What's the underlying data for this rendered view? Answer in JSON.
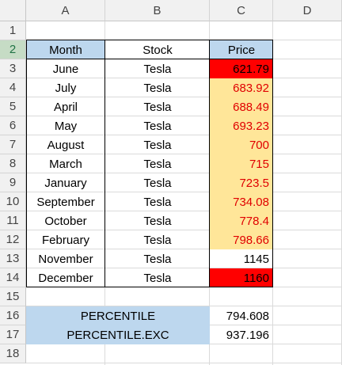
{
  "columns": [
    "A",
    "B",
    "C",
    "D"
  ],
  "rows": [
    "1",
    "2",
    "3",
    "4",
    "5",
    "6",
    "7",
    "8",
    "9",
    "10",
    "11",
    "12",
    "13",
    "14",
    "15",
    "16",
    "17",
    "18"
  ],
  "table": {
    "headers": {
      "month": "Month",
      "stock": "Stock",
      "price": "Price"
    },
    "data": [
      {
        "month": "June",
        "stock": "Tesla",
        "price": "621.79"
      },
      {
        "month": "July",
        "stock": "Tesla",
        "price": "683.92"
      },
      {
        "month": "April",
        "stock": "Tesla",
        "price": "688.49"
      },
      {
        "month": "May",
        "stock": "Tesla",
        "price": "693.23"
      },
      {
        "month": "August",
        "stock": "Tesla",
        "price": "700"
      },
      {
        "month": "March",
        "stock": "Tesla",
        "price": "715"
      },
      {
        "month": "January",
        "stock": "Tesla",
        "price": "723.5"
      },
      {
        "month": "September",
        "stock": "Tesla",
        "price": "734.08"
      },
      {
        "month": "October",
        "stock": "Tesla",
        "price": "778.4"
      },
      {
        "month": "February",
        "stock": "Tesla",
        "price": "798.66"
      },
      {
        "month": "November",
        "stock": "Tesla",
        "price": "1145"
      },
      {
        "month": "December",
        "stock": "Tesla",
        "price": "1160"
      }
    ]
  },
  "results": [
    {
      "label": "PERCENTILE",
      "value": "794.608"
    },
    {
      "label": "PERCENTILE.EXC",
      "value": "937.196"
    }
  ],
  "colors": {
    "header_fill": "#bdd7ee",
    "highlight_yellow": "#ffe699",
    "highlight_red": "#ff0000",
    "text_red": "#e00000",
    "selection": "#217346"
  }
}
